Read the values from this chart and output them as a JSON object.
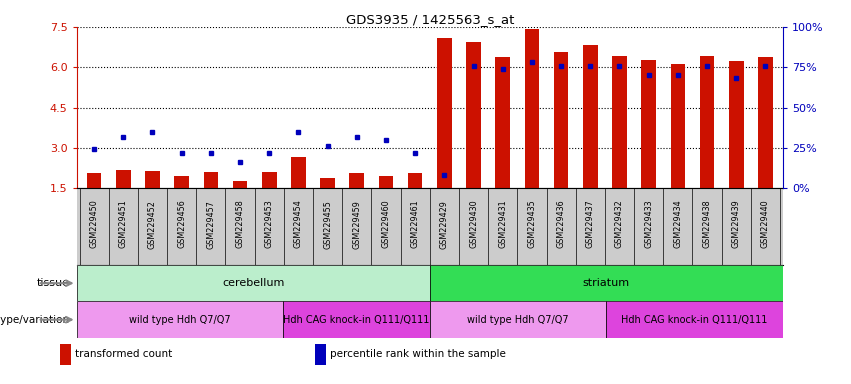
{
  "title": "GDS3935 / 1425563_s_at",
  "samples": [
    "GSM229450",
    "GSM229451",
    "GSM229452",
    "GSM229456",
    "GSM229457",
    "GSM229458",
    "GSM229453",
    "GSM229454",
    "GSM229455",
    "GSM229459",
    "GSM229460",
    "GSM229461",
    "GSM229429",
    "GSM229430",
    "GSM229431",
    "GSM229435",
    "GSM229436",
    "GSM229437",
    "GSM229432",
    "GSM229433",
    "GSM229434",
    "GSM229438",
    "GSM229439",
    "GSM229440"
  ],
  "transformed_count": [
    2.05,
    2.18,
    2.12,
    1.95,
    2.1,
    1.78,
    2.1,
    2.65,
    1.88,
    2.08,
    1.95,
    2.08,
    7.08,
    6.92,
    6.38,
    7.42,
    6.58,
    6.82,
    6.42,
    6.25,
    6.12,
    6.42,
    6.22,
    6.38
  ],
  "percentile_rank": [
    24,
    32,
    35,
    22,
    22,
    16,
    22,
    35,
    26,
    32,
    30,
    22,
    8,
    76,
    74,
    78,
    76,
    76,
    76,
    70,
    70,
    76,
    68,
    76
  ],
  "ylim_left": [
    1.5,
    7.5
  ],
  "ylim_right": [
    0,
    100
  ],
  "yticks_left": [
    1.5,
    3.0,
    4.5,
    6.0,
    7.5
  ],
  "yticks_right": [
    0,
    25,
    50,
    75,
    100
  ],
  "bar_color": "#cc1100",
  "dot_color": "#0000bb",
  "bar_bottom": 1.5,
  "xtick_bg_color": "#cccccc",
  "tissue_regions": [
    {
      "label": "cerebellum",
      "start": 0,
      "end": 12,
      "color": "#bbeecc"
    },
    {
      "label": "striatum",
      "start": 12,
      "end": 24,
      "color": "#33dd55"
    }
  ],
  "genotype_regions": [
    {
      "label": "wild type Hdh Q7/Q7",
      "start": 0,
      "end": 7,
      "color": "#ee99ee"
    },
    {
      "label": "Hdh CAG knock-in Q111/Q111",
      "start": 7,
      "end": 12,
      "color": "#dd44dd"
    },
    {
      "label": "wild type Hdh Q7/Q7",
      "start": 12,
      "end": 18,
      "color": "#ee99ee"
    },
    {
      "label": "Hdh CAG knock-in Q111/Q111",
      "start": 18,
      "end": 24,
      "color": "#dd44dd"
    }
  ],
  "legend_items": [
    {
      "label": "transformed count",
      "color": "#cc1100",
      "marker": "s"
    },
    {
      "label": "percentile rank within the sample",
      "color": "#0000bb",
      "marker": "s"
    }
  ],
  "tissue_row_label": "tissue",
  "geno_row_label": "genotype/variation",
  "label_arrow_color": "#888888"
}
